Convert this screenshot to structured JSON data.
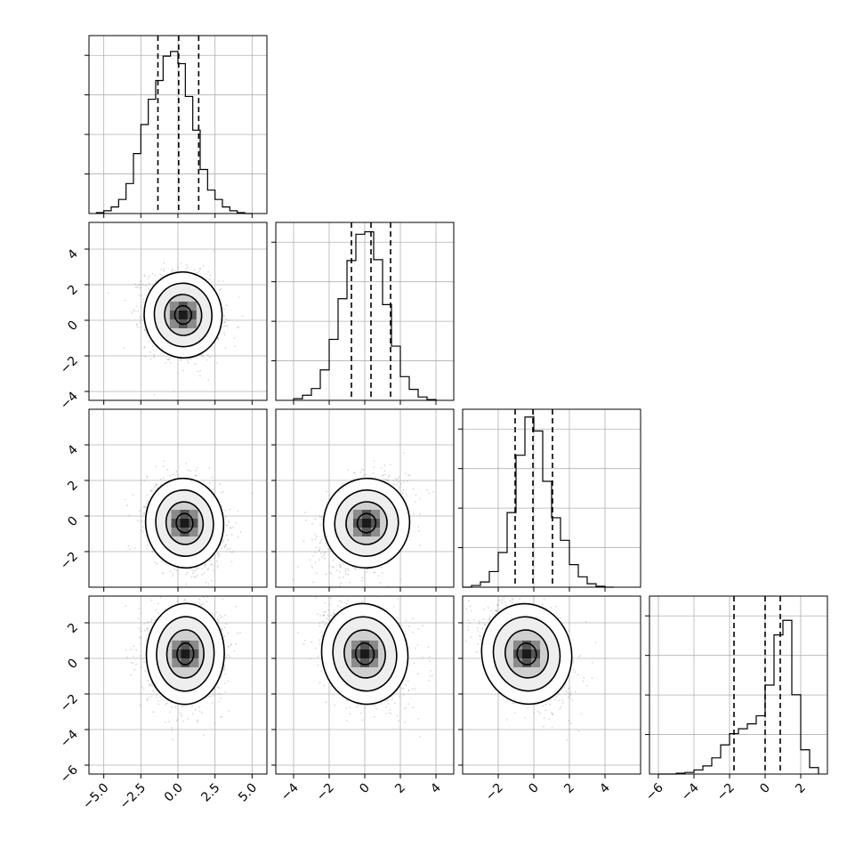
{
  "chart_data": {
    "type": "corner",
    "variables": 4,
    "grid": true,
    "quantiles": [
      0.16,
      0.5,
      0.84
    ],
    "diagonal": [
      {
        "type": "histogram",
        "xlim": [
          -6,
          6
        ],
        "bins": [
          -5.5,
          -5.0,
          -4.5,
          -4.0,
          -3.5,
          -3.0,
          -2.5,
          -2.0,
          -1.5,
          -1.0,
          -0.5,
          0.0,
          0.5,
          1.0,
          1.5,
          2.0,
          2.5,
          3.0,
          3.5,
          4.0,
          4.5,
          5.0
        ],
        "counts": [
          1,
          3,
          7,
          15,
          32,
          64,
          95,
          122,
          142,
          168,
          173,
          160,
          125,
          89,
          47,
          25,
          15,
          7,
          3,
          1,
          0
        ],
        "quantile_lines": [
          -1.35,
          0.05,
          1.4
        ],
        "ymax": 190
      },
      {
        "type": "histogram",
        "xlim": [
          -5,
          5
        ],
        "bins": [
          -4.0,
          -3.5,
          -3.0,
          -2.5,
          -2.0,
          -1.5,
          -1.0,
          -0.5,
          0.0,
          0.5,
          1.0,
          1.5,
          2.0,
          2.5,
          3.0,
          3.5,
          4.0
        ],
        "counts": [
          2,
          6,
          14,
          36,
          72,
          120,
          165,
          196,
          199,
          166,
          113,
          64,
          28,
          13,
          4,
          1
        ],
        "quantile_lines": [
          -0.75,
          0.35,
          1.45
        ],
        "ymax": 210
      },
      {
        "type": "histogram",
        "xlim": [
          -4,
          6
        ],
        "bins": [
          -4.0,
          -3.5,
          -3.0,
          -2.5,
          -2.0,
          -1.5,
          -1.0,
          -0.5,
          0.0,
          0.5,
          1.0,
          1.5,
          2.0,
          2.5,
          3.0,
          3.5,
          4.0,
          4.5
        ],
        "counts": [
          0,
          2,
          6,
          18,
          40,
          86,
          152,
          196,
          180,
          122,
          80,
          54,
          26,
          12,
          4,
          1,
          0
        ],
        "quantile_lines": [
          -1.05,
          -0.05,
          1.05
        ],
        "ymax": 205
      },
      {
        "type": "histogram",
        "xlim": [
          -6.5,
          3.5
        ],
        "bins": [
          -6.0,
          -5.5,
          -5.0,
          -4.5,
          -4.0,
          -3.5,
          -3.0,
          -2.5,
          -2.0,
          -1.5,
          -1.0,
          -0.5,
          0.0,
          0.5,
          1.0,
          1.5,
          2.0,
          2.5,
          3.0
        ],
        "counts": [
          0,
          0,
          1,
          2,
          5,
          10,
          20,
          36,
          50,
          56,
          62,
          72,
          110,
          172,
          190,
          98,
          30,
          8
        ],
        "quantile_lines": [
          -1.75,
          0.0,
          0.85
        ],
        "ymax": 220
      }
    ],
    "pairs": [
      {
        "row": 1,
        "col": 0,
        "xlim": [
          -6,
          6
        ],
        "ylim": [
          -4.5,
          5.5
        ],
        "center": [
          0.35,
          0.3
        ],
        "sx": 1.25,
        "sy": 1.15,
        "rho": -0.15
      },
      {
        "row": 2,
        "col": 0,
        "xlim": [
          -6,
          6
        ],
        "ylim": [
          -4,
          6
        ],
        "center": [
          0.45,
          -0.4
        ],
        "sx": 1.25,
        "sy": 1.2,
        "rho": -0.2
      },
      {
        "row": 2,
        "col": 1,
        "xlim": [
          -5,
          5
        ],
        "ylim": [
          -4,
          6
        ],
        "center": [
          0.1,
          -0.4
        ],
        "sx": 1.15,
        "sy": 1.2,
        "rho": 0.35
      },
      {
        "row": 3,
        "col": 0,
        "xlim": [
          -6,
          6
        ],
        "ylim": [
          -6.5,
          3.5
        ],
        "center": [
          0.5,
          0.25
        ],
        "sx": 1.25,
        "sy": 1.35,
        "rho": 0.05
      },
      {
        "row": 3,
        "col": 1,
        "xlim": [
          -5,
          5
        ],
        "ylim": [
          -6.5,
          3.5
        ],
        "center": [
          0.0,
          0.25
        ],
        "sx": 1.15,
        "sy": 1.35,
        "rho": -0.25
      },
      {
        "row": 3,
        "col": 2,
        "xlim": [
          -4,
          6
        ],
        "ylim": [
          -6.5,
          3.5
        ],
        "center": [
          -0.4,
          0.25
        ],
        "sx": 1.2,
        "sy": 1.35,
        "rho": -0.35
      }
    ],
    "x_tick_labels": [
      [
        {
          "v": -5,
          "label": "−5.0"
        },
        {
          "v": -2.5,
          "label": "−2.5"
        },
        {
          "v": 0,
          "label": "0.0"
        },
        {
          "v": 2.5,
          "label": "2.5"
        },
        {
          "v": 5,
          "label": "5.0"
        }
      ],
      [
        {
          "v": -4,
          "label": "−4"
        },
        {
          "v": -2,
          "label": "−2"
        },
        {
          "v": 0,
          "label": "0"
        },
        {
          "v": 2,
          "label": "2"
        },
        {
          "v": 4,
          "label": "4"
        }
      ],
      [
        {
          "v": -2,
          "label": "−2"
        },
        {
          "v": 0,
          "label": "0"
        },
        {
          "v": 2,
          "label": "2"
        },
        {
          "v": 4,
          "label": "4"
        }
      ],
      [
        {
          "v": -6,
          "label": "−6"
        },
        {
          "v": -4,
          "label": "−4"
        },
        {
          "v": -2,
          "label": "−2"
        },
        {
          "v": 0,
          "label": "0"
        },
        {
          "v": 2,
          "label": "2"
        }
      ]
    ],
    "y_tick_labels": [
      null,
      [
        {
          "v": -4,
          "label": "−4"
        },
        {
          "v": -2,
          "label": "−2"
        },
        {
          "v": 0,
          "label": "0"
        },
        {
          "v": 2,
          "label": "2"
        },
        {
          "v": 4,
          "label": "4"
        }
      ],
      [
        {
          "v": -2,
          "label": "−2"
        },
        {
          "v": 0,
          "label": "0"
        },
        {
          "v": 2,
          "label": "2"
        },
        {
          "v": 4,
          "label": "4"
        }
      ],
      [
        {
          "v": -6,
          "label": "−6"
        },
        {
          "v": -4,
          "label": "−4"
        },
        {
          "v": -2,
          "label": "−2"
        },
        {
          "v": 0,
          "label": "0"
        },
        {
          "v": 2,
          "label": "2"
        }
      ]
    ],
    "colors": {
      "line": "#000000",
      "grid": "#b0b0b0",
      "point": "#8c8c8c",
      "density": "#1a1a1a",
      "background": "#ffffff"
    }
  }
}
